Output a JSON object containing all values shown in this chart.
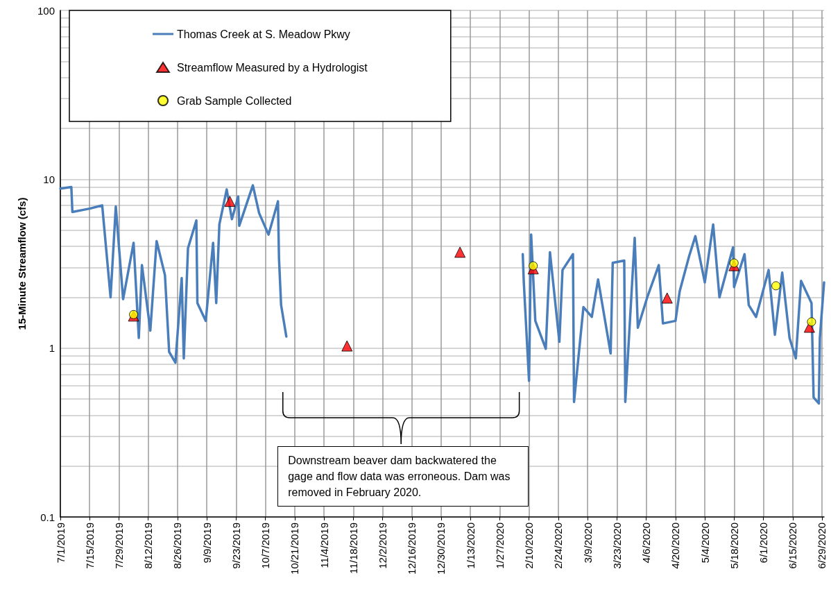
{
  "chart_data": {
    "type": "line",
    "ylabel": "15-Minute Streamflow (cfs)",
    "log": "y",
    "ylim": [
      0.1,
      100
    ],
    "yticks": [
      0.1,
      1,
      10,
      100
    ],
    "xlim": [
      "2019-07-01",
      "2020-06-30"
    ],
    "xticks": [
      {
        "value": "2019-07-01",
        "label": "7/1/2019"
      },
      {
        "value": "2019-07-15",
        "label": "7/15/2019"
      },
      {
        "value": "2019-07-29",
        "label": "7/29/2019"
      },
      {
        "value": "2019-08-12",
        "label": "8/12/2019"
      },
      {
        "value": "2019-08-26",
        "label": "8/26/2019"
      },
      {
        "value": "2019-09-09",
        "label": "9/9/2019"
      },
      {
        "value": "2019-09-23",
        "label": "9/23/2019"
      },
      {
        "value": "2019-10-07",
        "label": "10/7/2019"
      },
      {
        "value": "2019-10-21",
        "label": "10/21/2019"
      },
      {
        "value": "2019-11-04",
        "label": "11/4/2019"
      },
      {
        "value": "2019-11-18",
        "label": "11/18/2019"
      },
      {
        "value": "2019-12-02",
        "label": "12/2/2019"
      },
      {
        "value": "2019-12-16",
        "label": "12/16/2019"
      },
      {
        "value": "2019-12-30",
        "label": "12/30/2019"
      },
      {
        "value": "2020-01-13",
        "label": "1/13/2020"
      },
      {
        "value": "2020-01-27",
        "label": "1/27/2020"
      },
      {
        "value": "2020-02-10",
        "label": "2/10/2020"
      },
      {
        "value": "2020-02-24",
        "label": "2/24/2020"
      },
      {
        "value": "2020-03-09",
        "label": "3/9/2020"
      },
      {
        "value": "2020-03-23",
        "label": "3/23/2020"
      },
      {
        "value": "2020-04-06",
        "label": "4/6/2020"
      },
      {
        "value": "2020-04-20",
        "label": "4/20/2020"
      },
      {
        "value": "2020-05-04",
        "label": "5/4/2020"
      },
      {
        "value": "2020-05-18",
        "label": "5/18/2020"
      },
      {
        "value": "2020-06-01",
        "label": "6/1/2020"
      },
      {
        "value": "2020-06-15",
        "label": "6/15/2020"
      },
      {
        "value": "2020-06-29",
        "label": "6/29/2020"
      }
    ],
    "grid": true,
    "legend": "top left",
    "series": [
      {
        "name": "Thomas Creek at S. Meadow Pkwy",
        "marker": "none",
        "color": "#4a7ebb",
        "x": [
          "2019-07-01",
          "2019-07-06T06:00",
          "2019-07-06T18:00",
          "2019-07-15",
          "2019-07-21",
          "2019-07-25",
          "2019-07-27T12:00",
          "2019-07-31",
          "2019-08-05",
          "2019-08-07T12:00",
          "2019-08-09",
          "2019-08-13",
          "2019-08-16",
          "2019-08-20",
          "2019-08-22",
          "2019-08-25",
          "2019-08-28",
          "2019-08-29",
          "2019-08-31",
          "2019-09-04",
          "2019-09-04T12:00",
          "2019-09-08T12:00",
          "2019-09-12",
          "2019-09-13T12:00",
          "2019-09-15",
          "2019-09-18T12:00",
          "2019-09-21",
          "2019-09-24",
          "2019-09-24T12:00",
          "2019-10-01",
          "2019-10-04",
          "2019-10-08T12:00",
          "2019-10-13",
          "2019-10-13T12:00",
          "2019-10-14T12:00",
          "2019-10-17",
          "2019-10-18",
          "2020-02-07",
          "2020-02-07T12:00",
          "2020-02-10",
          "2020-02-11",
          "2020-02-13",
          "2020-02-18",
          "2020-02-20",
          "2020-02-24T12:00",
          "2020-02-26",
          "2020-03-02",
          "2020-03-02T12:00",
          "2020-03-07",
          "2020-03-11",
          "2020-03-14",
          "2020-03-20",
          "2020-03-21",
          "2020-03-26T12:00",
          "2020-03-27",
          "2020-03-31T12:00",
          "2020-04-02",
          "2020-04-06T12:00",
          "2020-04-12",
          "2020-04-14",
          "2020-04-20",
          "2020-04-22",
          "2020-04-26T12:00",
          "2020-04-29T12:00",
          "2020-05-04",
          "2020-05-08",
          "2020-05-11",
          "2020-05-17T12:00",
          "2020-05-18",
          "2020-05-23",
          "2020-05-25",
          "2020-05-28T12:00",
          "2020-06-03T12:00",
          "2020-06-06T12:00",
          "2020-06-10",
          "2020-06-13T12:00",
          "2020-06-16T12:00",
          "2020-06-19",
          "2020-06-24",
          "2020-06-25",
          "2020-06-27T12:00",
          "2020-06-28",
          "2020-06-30"
        ],
        "values": [
          8.8,
          9.0,
          6.4,
          6.7,
          7.0,
          2.0,
          6.9,
          1.95,
          4.2,
          1.15,
          3.1,
          1.27,
          4.3,
          2.7,
          0.95,
          0.82,
          2.6,
          0.87,
          3.9,
          5.7,
          1.85,
          1.45,
          4.2,
          1.85,
          5.4,
          8.7,
          5.8,
          7.9,
          5.3,
          9.2,
          6.3,
          4.7,
          7.4,
          3.4,
          1.8,
          1.17,
          null,
          3.6,
          2.45,
          0.64,
          4.7,
          1.45,
          0.99,
          3.7,
          1.09,
          2.9,
          3.6,
          0.48,
          1.75,
          1.53,
          2.55,
          0.93,
          3.2,
          3.3,
          0.48,
          4.5,
          1.32,
          2.0,
          3.1,
          1.4,
          1.45,
          2.17,
          3.5,
          4.6,
          2.45,
          5.4,
          2.0,
          3.95,
          2.3,
          3.6,
          1.8,
          1.53,
          2.9,
          1.2,
          2.8,
          1.15,
          0.87,
          2.5,
          1.85,
          0.51,
          0.47,
          1.15,
          2.45
        ]
      },
      {
        "name": "Streamflow Measured by a Hydrologist",
        "type": "scatter",
        "marker": "triangle",
        "color": "#ff0000",
        "x": [
          "2019-08-05",
          "2019-09-20",
          "2019-11-15",
          "2020-01-08",
          "2020-02-12",
          "2020-04-16",
          "2020-05-18",
          "2020-06-23"
        ],
        "values": [
          1.55,
          7.4,
          1.03,
          3.7,
          2.95,
          1.98,
          3.08,
          1.33
        ]
      },
      {
        "name": "Grab Sample Collected",
        "type": "scatter",
        "marker": "circle",
        "color": "#ffff00",
        "x": [
          "2019-08-05",
          "2020-02-12",
          "2020-05-18",
          "2020-06-07",
          "2020-06-24"
        ],
        "values": [
          1.58,
          3.07,
          3.19,
          2.34,
          1.43
        ]
      }
    ],
    "annotations": [
      "Downstream beaver dam backwatered the gage and flow data was erroneous. Dam was removed in February 2020."
    ]
  }
}
